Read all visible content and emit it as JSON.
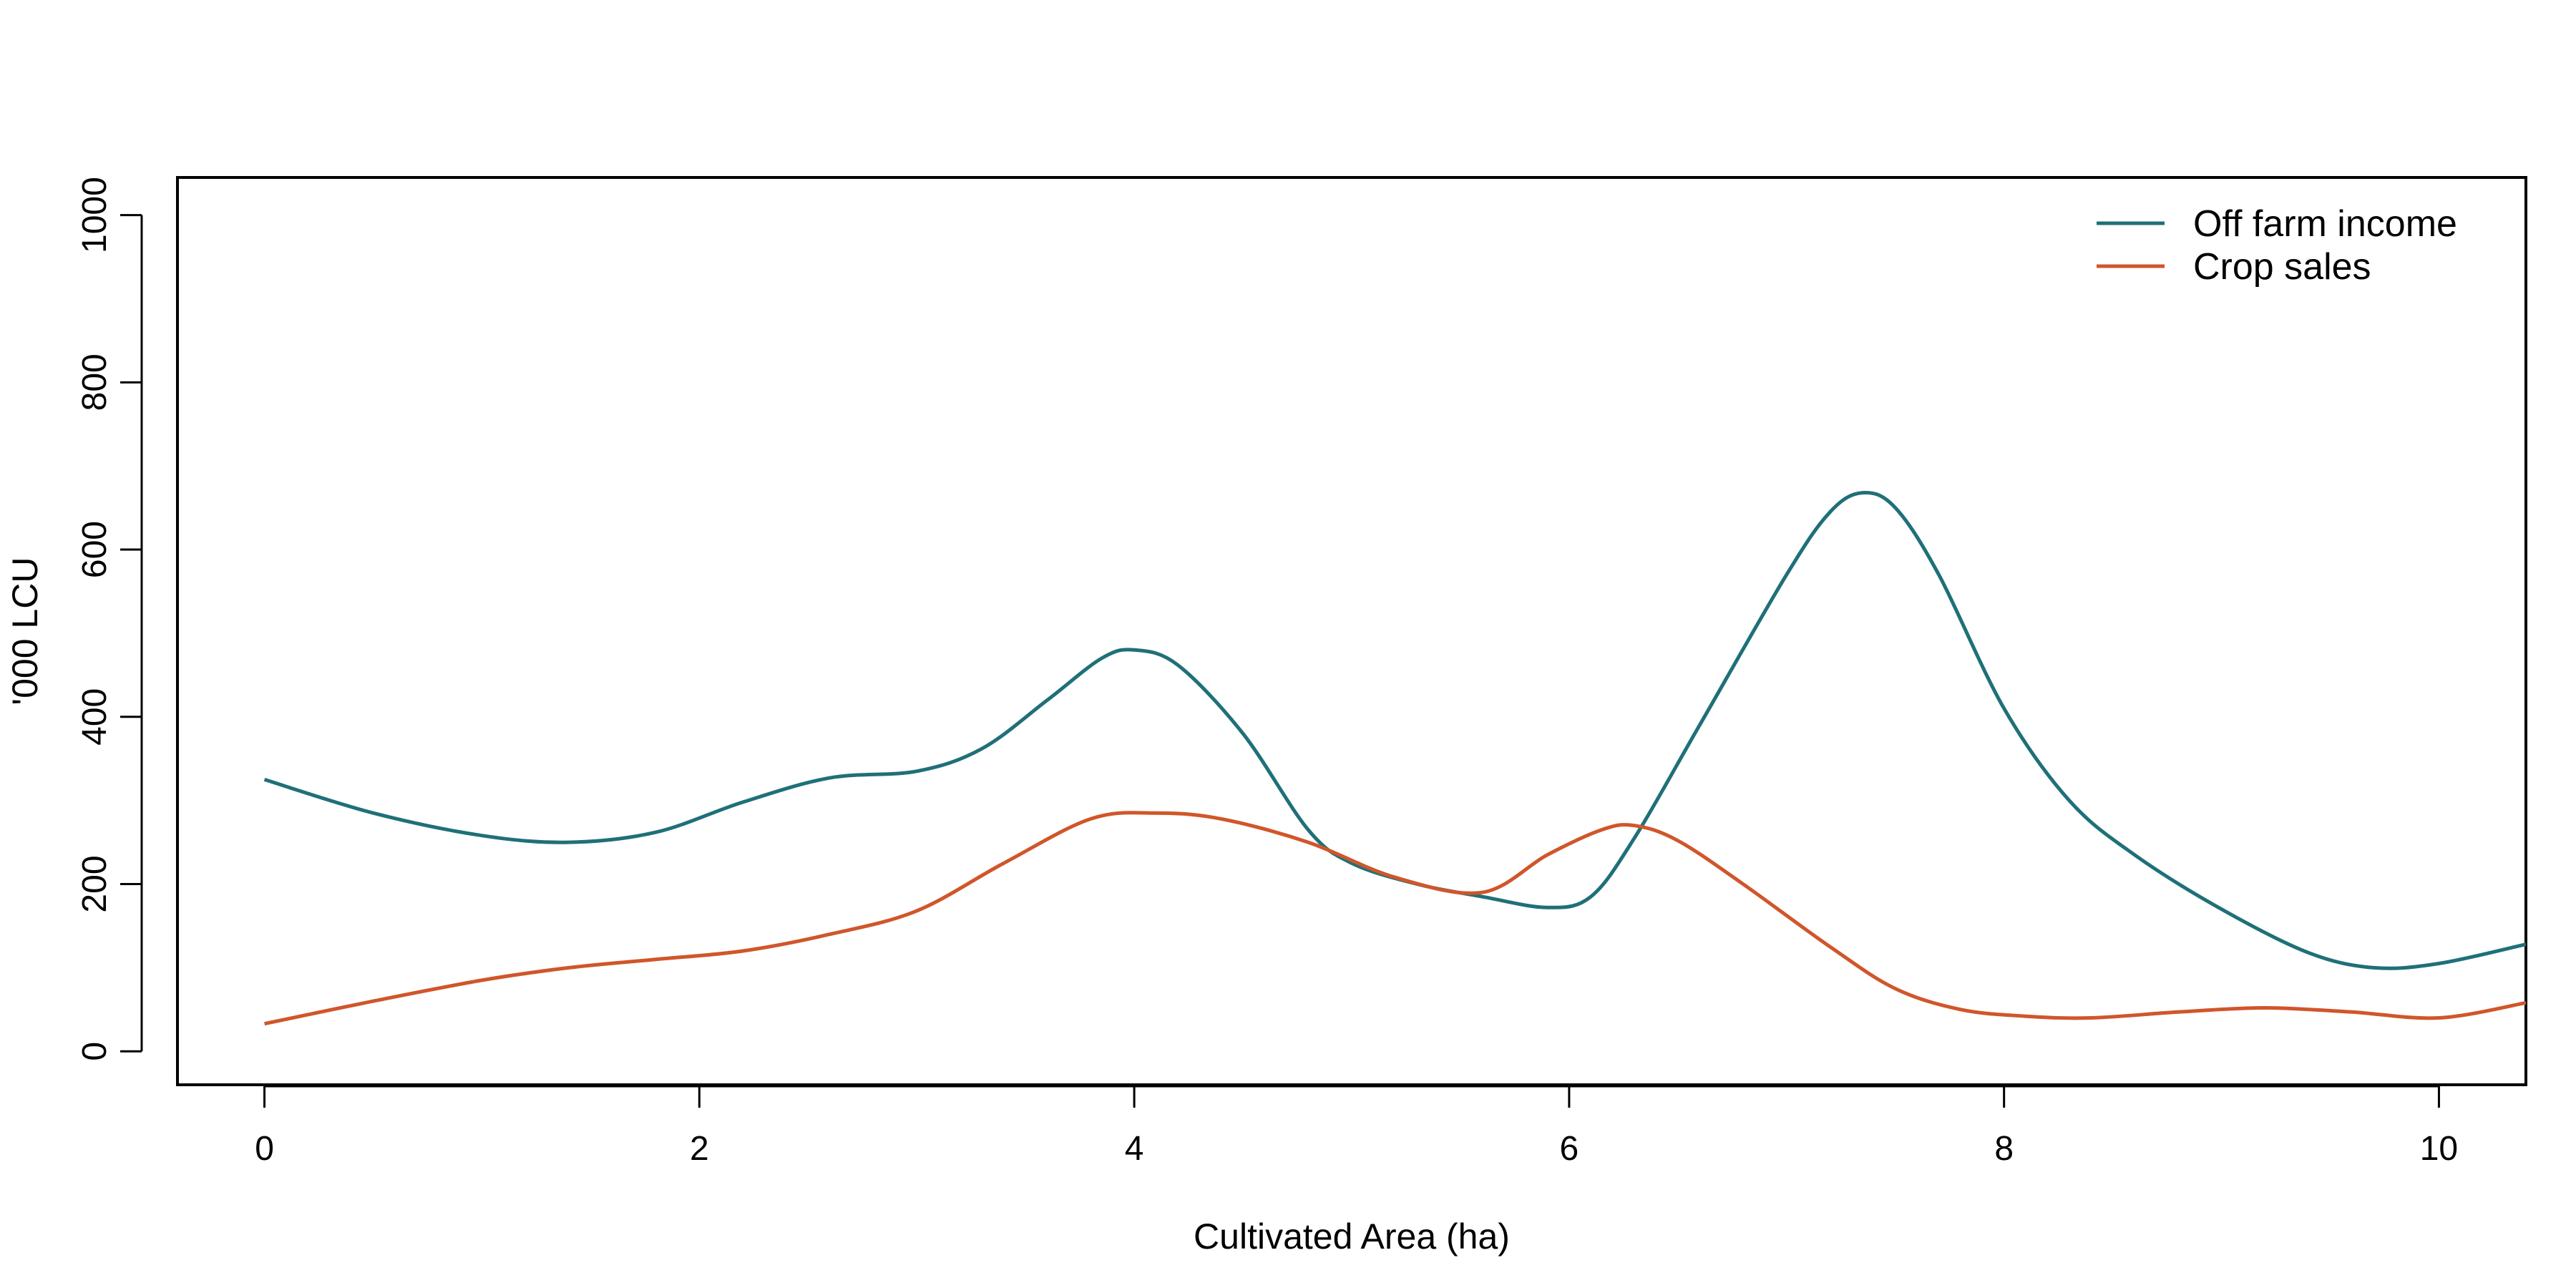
{
  "chart_data": {
    "type": "line",
    "title": "",
    "xlabel": "Cultivated Area (ha)",
    "ylabel": "'000 LCU",
    "xlim": [
      -0.4,
      10.4
    ],
    "ylim": [
      -40,
      1045
    ],
    "xticks": [
      0,
      2,
      4,
      6,
      8,
      10
    ],
    "yticks": [
      0,
      200,
      400,
      600,
      800,
      1000
    ],
    "grid": false,
    "legend": {
      "position": "top-right"
    },
    "series": [
      {
        "name": "Off farm income",
        "color": "#1f7078",
        "x": [
          0,
          0.5,
          1.0,
          1.4,
          1.8,
          2.2,
          2.6,
          3.0,
          3.3,
          3.6,
          3.85,
          4.0,
          4.2,
          4.5,
          4.8,
          5.0,
          5.3,
          5.6,
          5.9,
          6.1,
          6.3,
          6.6,
          7.0,
          7.2,
          7.35,
          7.5,
          7.7,
          8.0,
          8.3,
          8.6,
          9.0,
          9.4,
          9.7,
          10.0,
          10.4
        ],
        "y": [
          325,
          285,
          258,
          250,
          262,
          298,
          327,
          335,
          362,
          420,
          470,
          480,
          462,
          380,
          265,
          225,
          200,
          185,
          172,
          185,
          255,
          390,
          570,
          645,
          668,
          650,
          570,
          410,
          300,
          235,
          170,
          118,
          100,
          105,
          128
        ]
      },
      {
        "name": "Crop sales",
        "color": "#d0562a",
        "x": [
          0,
          0.5,
          1.0,
          1.4,
          1.8,
          2.2,
          2.6,
          3.0,
          3.4,
          3.8,
          4.1,
          4.4,
          4.8,
          5.2,
          5.6,
          5.9,
          6.15,
          6.3,
          6.5,
          6.8,
          7.2,
          7.5,
          7.8,
          8.1,
          8.4,
          8.8,
          9.2,
          9.6,
          10.0,
          10.4
        ],
        "y": [
          33,
          60,
          85,
          100,
          110,
          120,
          140,
          168,
          225,
          278,
          285,
          278,
          250,
          208,
          190,
          235,
          265,
          270,
          252,
          200,
          125,
          75,
          50,
          42,
          40,
          47,
          52,
          47,
          40,
          58
        ]
      }
    ]
  }
}
